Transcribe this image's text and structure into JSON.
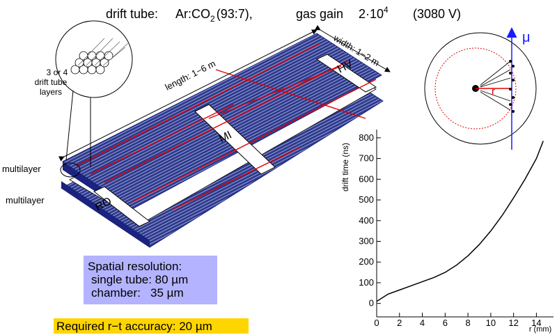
{
  "title": {
    "parts": [
      "drift tube:",
      "Ar:CO",
      "2",
      "(93:7),",
      "gas gain",
      "2·10",
      "4",
      "(3080 V)"
    ]
  },
  "inset_label": [
    "3 or 4",
    "drift tube",
    "layers"
  ],
  "dimensions": {
    "length": "length: 1−6 m",
    "width": "width: 1−2 m"
  },
  "spacers": [
    "HV",
    "MI",
    "RO"
  ],
  "multilayers": [
    "multilayer",
    "multilayer"
  ],
  "track": {
    "muon": "μ",
    "radius": "r"
  },
  "resolution_box": [
    "Spatial resolution:",
    "single tube: 80 µm",
    "chamber:   35 µm"
  ],
  "accuracy_note": "Required r−t accuracy: 20 µm",
  "chart_data": {
    "type": "line",
    "x_label": "r (mm)",
    "y_label": "drift time (ns)",
    "x": [
      0,
      1,
      2,
      3,
      4,
      5,
      6,
      7,
      8,
      9,
      10,
      11,
      12,
      13,
      14,
      14.6
    ],
    "series": [
      {
        "color": "#000000",
        "values": [
          10,
          45,
          65,
          85,
          105,
          125,
          150,
          185,
          230,
          285,
          350,
          425,
          510,
          600,
          700,
          785
        ]
      }
    ],
    "xlim": [
      0,
      15.5
    ],
    "ylim": [
      -65,
      840
    ],
    "xticks": [
      0,
      2,
      4,
      6,
      8,
      10,
      12,
      14
    ],
    "yticks": [
      0,
      100,
      200,
      300,
      400,
      500,
      600,
      700,
      800
    ]
  }
}
